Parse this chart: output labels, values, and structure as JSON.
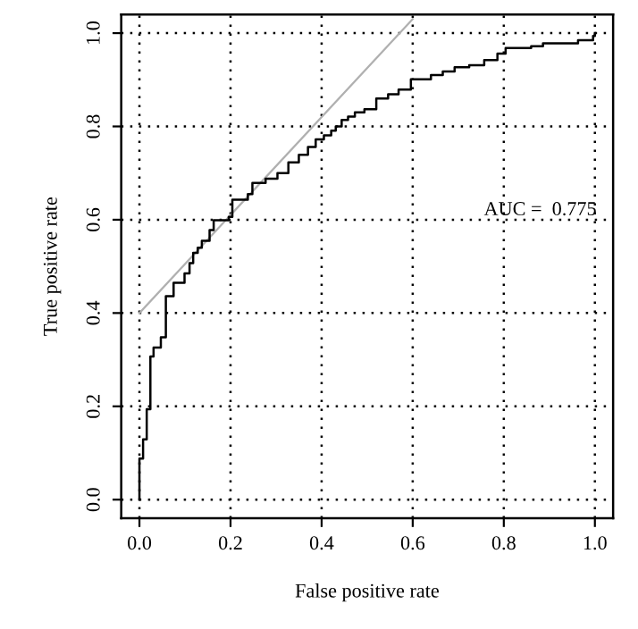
{
  "chart_data": {
    "type": "step",
    "xlabel": "False positive rate",
    "ylabel": "True positive rate",
    "xlim": [
      -0.04,
      1.04
    ],
    "ylim": [
      -0.04,
      1.04
    ],
    "xticks": [
      {
        "value": 0,
        "label": "0.0"
      },
      0.2,
      0.4,
      0.6,
      0.8,
      {
        "value": 1,
        "label": "1.0"
      }
    ],
    "yticks": [
      {
        "value": 0,
        "label": "0.0"
      },
      0.2,
      0.4,
      0.6,
      0.8,
      {
        "value": 1,
        "label": "1.0"
      }
    ],
    "grid": true,
    "annotations": [
      "AUC =  0.775"
    ],
    "series": [
      {
        "type": "line",
        "color": "#b0b0b0",
        "x": [
          0,
          0.6
        ],
        "values": [
          0.4,
          1.03
        ]
      },
      {
        "color": "#000000",
        "x": [
          0,
          0,
          0.008,
          0.016,
          0.024,
          0.031,
          0.047,
          0.058,
          0.075,
          0.099,
          0.11,
          0.118,
          0.128,
          0.137,
          0.154,
          0.163,
          0.196,
          0.204,
          0.238,
          0.248,
          0.277,
          0.303,
          0.327,
          0.35,
          0.37,
          0.387,
          0.405,
          0.421,
          0.431,
          0.444,
          0.458,
          0.473,
          0.494,
          0.52,
          0.546,
          0.569,
          0.596,
          0.64,
          0.666,
          0.692,
          0.724,
          0.757,
          0.786,
          0.804,
          0.86,
          0.886,
          0.963,
          0.996,
          1.0
        ],
        "values": [
          0,
          0.088,
          0.129,
          0.194,
          0.307,
          0.326,
          0.348,
          0.436,
          0.465,
          0.485,
          0.507,
          0.529,
          0.54,
          0.555,
          0.578,
          0.599,
          0.606,
          0.643,
          0.655,
          0.679,
          0.688,
          0.7,
          0.723,
          0.739,
          0.756,
          0.772,
          0.781,
          0.791,
          0.8,
          0.814,
          0.821,
          0.83,
          0.837,
          0.86,
          0.869,
          0.879,
          0.901,
          0.91,
          0.918,
          0.927,
          0.931,
          0.942,
          0.956,
          0.968,
          0.972,
          0.978,
          0.985,
          0.994,
          1.0
        ]
      }
    ]
  }
}
